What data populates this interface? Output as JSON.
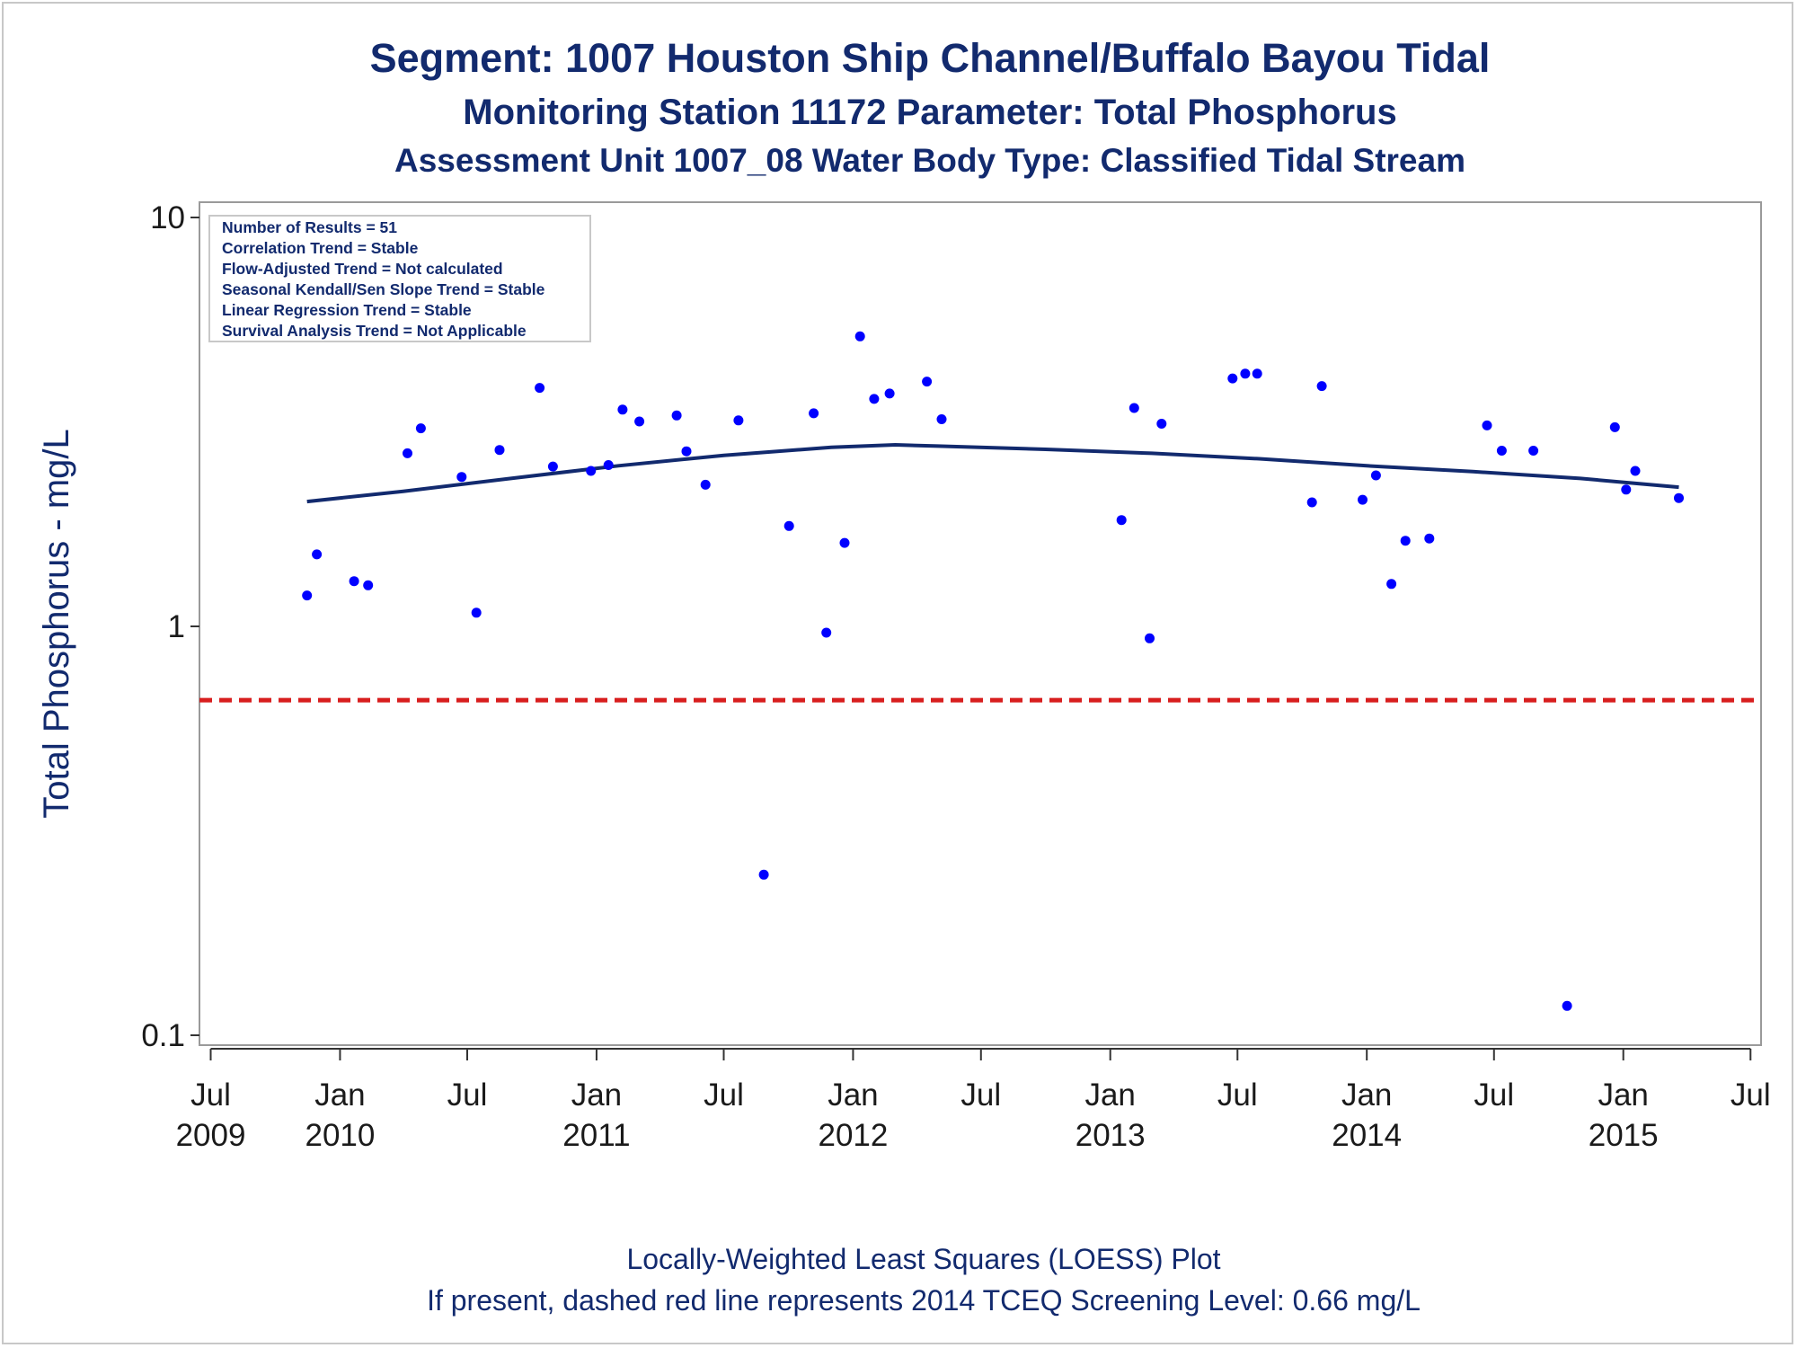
{
  "chart_data": {
    "type": "scatter",
    "title": "Segment: 1007  Houston Ship Channel/Buffalo Bayou Tidal",
    "subtitle": "Monitoring Station 11172 Parameter: Total Phosphorus",
    "subtitle2": "Assessment Unit 1007_08   Water Body Type: Classified Tidal Stream",
    "ylabel": "Total Phosphorus - mg/L",
    "yscale": "log",
    "ylim": [
      0.1,
      10
    ],
    "xlim": [
      "2009-06-15",
      "2015-07-16"
    ],
    "y_ticks": [
      {
        "value": 0.1,
        "label": "0.1"
      },
      {
        "value": 1,
        "label": "1"
      },
      {
        "value": 10,
        "label": "10"
      }
    ],
    "x_ticks": [
      {
        "date": "2009-07-01",
        "month": "Jul",
        "year": "2009"
      },
      {
        "date": "2010-01-01",
        "month": "Jan",
        "year": "2010"
      },
      {
        "date": "2010-07-01",
        "month": "Jul",
        "year": ""
      },
      {
        "date": "2011-01-01",
        "month": "Jan",
        "year": "2011"
      },
      {
        "date": "2011-07-01",
        "month": "Jul",
        "year": ""
      },
      {
        "date": "2012-01-01",
        "month": "Jan",
        "year": "2012"
      },
      {
        "date": "2012-07-01",
        "month": "Jul",
        "year": ""
      },
      {
        "date": "2013-01-01",
        "month": "Jan",
        "year": "2013"
      },
      {
        "date": "2013-07-01",
        "month": "Jul",
        "year": ""
      },
      {
        "date": "2014-01-01",
        "month": "Jan",
        "year": "2014"
      },
      {
        "date": "2014-07-01",
        "month": "Jul",
        "year": ""
      },
      {
        "date": "2015-01-01",
        "month": "Jan",
        "year": "2015"
      },
      {
        "date": "2015-07-01",
        "month": "Jul",
        "year": ""
      }
    ],
    "grid": false,
    "stats_box": {
      "placement": "top-left",
      "lines": [
        "Number of Results = 51",
        "Correlation Trend = Stable",
        "Flow-Adjusted Trend = Not calculated",
        "Seasonal Kendall/Sen Slope Trend = Stable",
        "Linear Regression Trend = Stable",
        "Survival Analysis Trend = Not Applicable"
      ]
    },
    "screening_level": {
      "value": 0.66,
      "style": "dashed",
      "color": "#d81e1e"
    },
    "series": [
      {
        "type": "scatter",
        "color": "#0000ff",
        "points": [
          {
            "x": "2009-11-15",
            "y": 1.19
          },
          {
            "x": "2009-11-29",
            "y": 1.5
          },
          {
            "x": "2010-01-21",
            "y": 1.29
          },
          {
            "x": "2010-02-10",
            "y": 1.26
          },
          {
            "x": "2010-04-07",
            "y": 2.65
          },
          {
            "x": "2010-04-26",
            "y": 3.05
          },
          {
            "x": "2010-06-23",
            "y": 2.32
          },
          {
            "x": "2010-07-14",
            "y": 1.08
          },
          {
            "x": "2010-08-16",
            "y": 2.7
          },
          {
            "x": "2010-10-12",
            "y": 3.83
          },
          {
            "x": "2010-10-31",
            "y": 2.46
          },
          {
            "x": "2010-12-24",
            "y": 2.4
          },
          {
            "x": "2011-01-18",
            "y": 2.48
          },
          {
            "x": "2011-02-07",
            "y": 3.39
          },
          {
            "x": "2011-03-03",
            "y": 3.17
          },
          {
            "x": "2011-04-25",
            "y": 3.28
          },
          {
            "x": "2011-05-09",
            "y": 2.68
          },
          {
            "x": "2011-06-05",
            "y": 2.22
          },
          {
            "x": "2011-07-22",
            "y": 3.19
          },
          {
            "x": "2011-08-27",
            "y": 0.247
          },
          {
            "x": "2011-10-02",
            "y": 1.76
          },
          {
            "x": "2011-11-06",
            "y": 3.32
          },
          {
            "x": "2011-11-24",
            "y": 0.965
          },
          {
            "x": "2011-12-20",
            "y": 1.6
          },
          {
            "x": "2012-01-11",
            "y": 5.12
          },
          {
            "x": "2012-01-31",
            "y": 3.6
          },
          {
            "x": "2012-02-22",
            "y": 3.71
          },
          {
            "x": "2012-04-15",
            "y": 3.97
          },
          {
            "x": "2012-05-06",
            "y": 3.21
          },
          {
            "x": "2013-01-17",
            "y": 1.82
          },
          {
            "x": "2013-02-04",
            "y": 3.42
          },
          {
            "x": "2013-02-26",
            "y": 0.935
          },
          {
            "x": "2013-03-15",
            "y": 3.13
          },
          {
            "x": "2013-06-24",
            "y": 4.04
          },
          {
            "x": "2013-07-12",
            "y": 4.15
          },
          {
            "x": "2013-07-29",
            "y": 4.15
          },
          {
            "x": "2013-10-15",
            "y": 2.01
          },
          {
            "x": "2013-10-29",
            "y": 3.87
          },
          {
            "x": "2013-12-26",
            "y": 2.04
          },
          {
            "x": "2014-01-14",
            "y": 2.34
          },
          {
            "x": "2014-02-05",
            "y": 1.27
          },
          {
            "x": "2014-02-25",
            "y": 1.62
          },
          {
            "x": "2014-03-31",
            "y": 1.64
          },
          {
            "x": "2014-06-21",
            "y": 3.1
          },
          {
            "x": "2014-07-12",
            "y": 2.69
          },
          {
            "x": "2014-08-26",
            "y": 2.69
          },
          {
            "x": "2014-10-13",
            "y": 0.118
          },
          {
            "x": "2014-12-20",
            "y": 3.07
          },
          {
            "x": "2015-01-05",
            "y": 2.16
          },
          {
            "x": "2015-01-18",
            "y": 2.4
          },
          {
            "x": "2015-03-21",
            "y": 2.06
          }
        ]
      },
      {
        "type": "line",
        "color": "#122a6e",
        "points": [
          {
            "x": "2009-11-15",
            "y": 2.02
          },
          {
            "x": "2010-04-01",
            "y": 2.14
          },
          {
            "x": "2010-09-01",
            "y": 2.3
          },
          {
            "x": "2011-02-01",
            "y": 2.47
          },
          {
            "x": "2011-07-01",
            "y": 2.62
          },
          {
            "x": "2011-12-01",
            "y": 2.74
          },
          {
            "x": "2012-03-01",
            "y": 2.78
          },
          {
            "x": "2012-05-01",
            "y": 2.76
          },
          {
            "x": "2012-10-01",
            "y": 2.71
          },
          {
            "x": "2013-03-01",
            "y": 2.65
          },
          {
            "x": "2013-08-01",
            "y": 2.57
          },
          {
            "x": "2014-01-01",
            "y": 2.47
          },
          {
            "x": "2014-06-01",
            "y": 2.39
          },
          {
            "x": "2014-11-01",
            "y": 2.3
          },
          {
            "x": "2015-03-21",
            "y": 2.19
          }
        ]
      }
    ],
    "footer_line1": "Locally-Weighted Least Squares (LOESS) Plot",
    "footer_line2": "If present, dashed red line represents 2014 TCEQ Screening Level: 0.66 mg/L"
  }
}
